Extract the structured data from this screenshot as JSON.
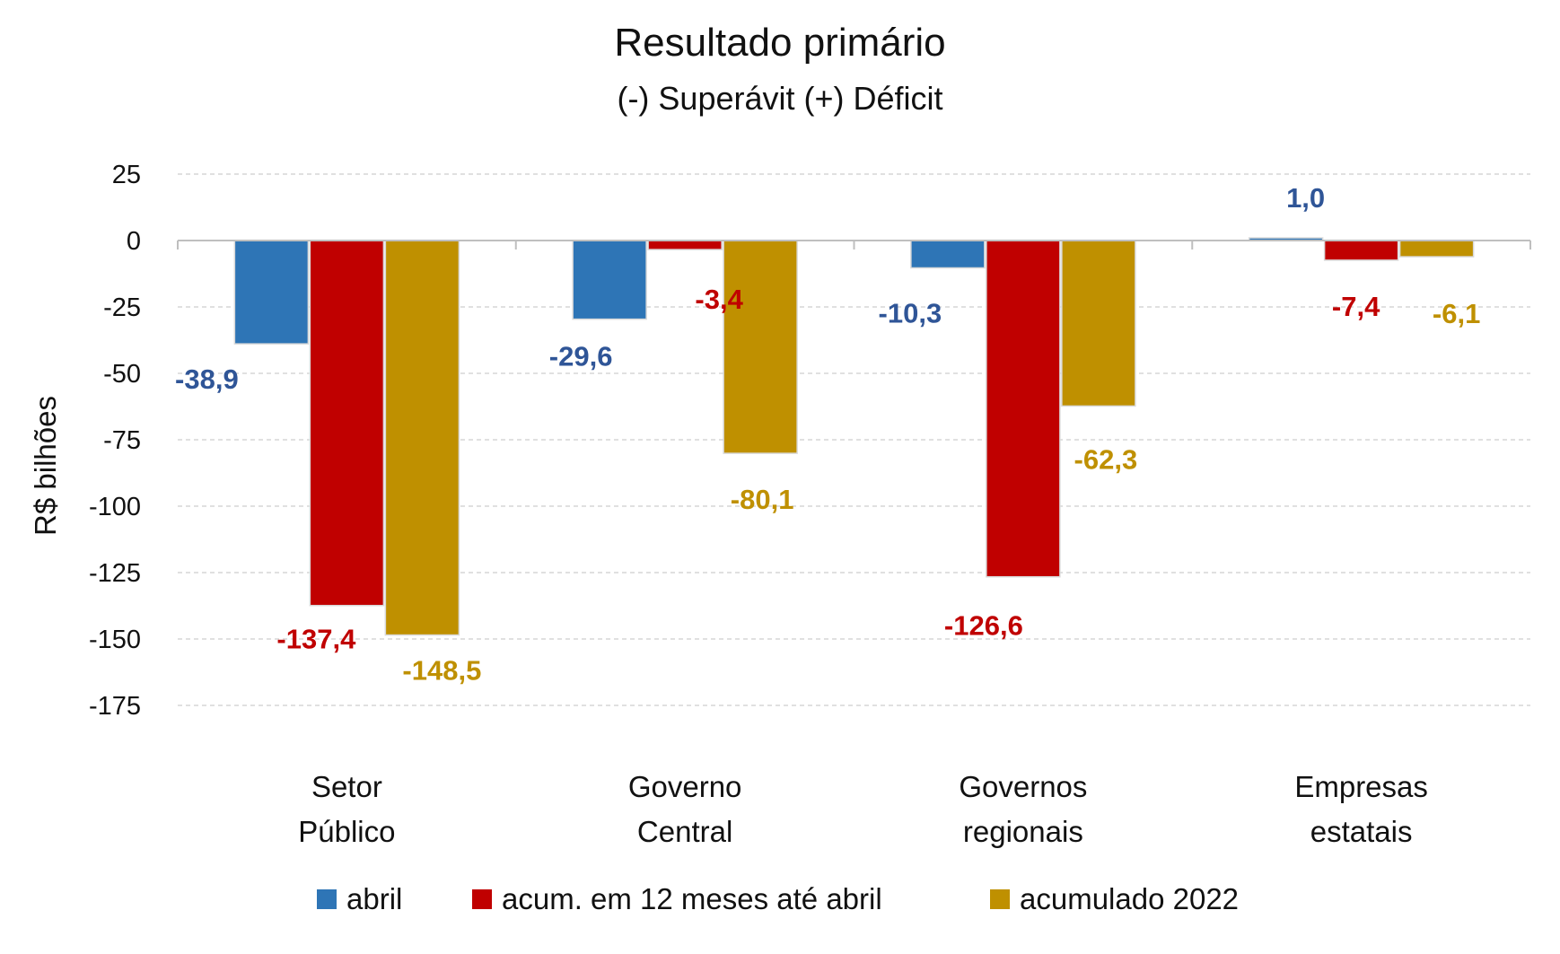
{
  "chart_data": {
    "type": "bar",
    "title": "Resultado primário",
    "subtitle": "(-) Superávit  (+) Déficit",
    "ylabel": "R$ bilhões",
    "xlabel": "",
    "ylim": [
      -175,
      25
    ],
    "yticks": [
      25,
      0,
      -25,
      -50,
      -75,
      -100,
      -125,
      -150,
      -175
    ],
    "grid": true,
    "legend_position": "bottom",
    "categories": [
      [
        "Setor",
        "Público"
      ],
      [
        "Governo",
        "Central"
      ],
      [
        "Governos",
        "regionais"
      ],
      [
        "Empresas",
        "estatais"
      ]
    ],
    "series": [
      {
        "name": "abril",
        "color": "#2e75b6",
        "label_color": "#2f5597",
        "values": [
          -38.9,
          -29.6,
          -10.3,
          1.0
        ],
        "labels": [
          "-38,9",
          "-29,6",
          "-10,3",
          "1,0"
        ]
      },
      {
        "name": "acum. em 12 meses até abril",
        "color": "#c00000",
        "label_color": "#c00000",
        "values": [
          -137.4,
          -3.4,
          -126.6,
          -7.4
        ],
        "labels": [
          "-137,4",
          "-3,4",
          "-126,6",
          "-7,4"
        ]
      },
      {
        "name": "acumulado 2022",
        "color": "#bf9000",
        "label_color": "#bf9000",
        "values": [
          -148.5,
          -80.1,
          -62.3,
          -6.1
        ],
        "labels": [
          "-148,5",
          "-80,1",
          "-62,3",
          "-6,1"
        ]
      }
    ]
  }
}
